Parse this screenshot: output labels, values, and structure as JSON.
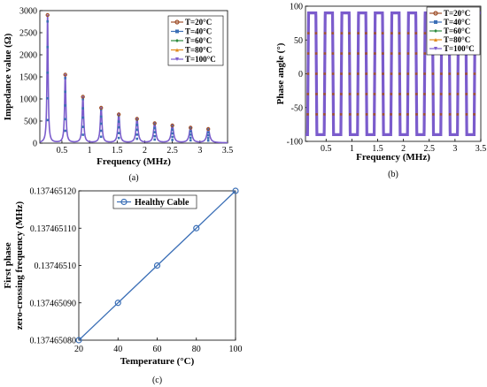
{
  "chart_data": [
    {
      "type": "line",
      "panel": "(a)",
      "xlabel": "Frequency (MHz)",
      "ylabel": "Impedance value (Ω)",
      "xlim": [
        0.1,
        3.5
      ],
      "ylim": [
        0,
        3000
      ],
      "xticks": [
        "0.5",
        "1",
        "1.5",
        "2",
        "2.5",
        "3",
        "3.5"
      ],
      "yticks": [
        "0",
        "500",
        "1000",
        "1500",
        "2000",
        "2500",
        "3000"
      ],
      "grid": false,
      "legend_position": "top-right",
      "series": [
        {
          "name": "T=20°C",
          "color": "#a0522d",
          "marker": "circle"
        },
        {
          "name": "T=40°C",
          "color": "#3b6fb6",
          "marker": "square"
        },
        {
          "name": "T=60°C",
          "color": "#2e8b3e",
          "marker": "diamond"
        },
        {
          "name": "T=80°C",
          "color": "#e08a1e",
          "marker": "triangle-up"
        },
        {
          "name": "T=100°C",
          "color": "#7b5ccc",
          "marker": "triangle-down"
        }
      ],
      "resonance_peaks": {
        "x": [
          0.24,
          0.56,
          0.88,
          1.21,
          1.53,
          1.86,
          2.18,
          2.5,
          2.83,
          3.15
        ],
        "y": [
          2900,
          1550,
          1050,
          800,
          650,
          550,
          450,
          400,
          350,
          320
        ]
      }
    },
    {
      "type": "line",
      "panel": "(b)",
      "xlabel": "Frequency (MHz)",
      "ylabel": "Phase angle (°)",
      "xlim": [
        0.1,
        3.5
      ],
      "ylim": [
        -100,
        100
      ],
      "xticks": [
        "0.5",
        "1",
        "1.5",
        "2",
        "2.5",
        "3",
        "3.5"
      ],
      "yticks": [
        "-100",
        "-50",
        "0",
        "50",
        "100"
      ],
      "grid": false,
      "legend_position": "top-right",
      "series": [
        {
          "name": "T=20°C",
          "color": "#a0522d",
          "marker": "circle"
        },
        {
          "name": "T=40°C",
          "color": "#3b6fb6",
          "marker": "square"
        },
        {
          "name": "T=60°C",
          "color": "#2e8b3e",
          "marker": "diamond"
        },
        {
          "name": "T=80°C",
          "color": "#e08a1e",
          "marker": "triangle-up"
        },
        {
          "name": "T=100°C",
          "color": "#7b5ccc",
          "marker": "triangle-down"
        }
      ],
      "phase_limits": [
        -90,
        90
      ],
      "first_crossing_MHz": 0.14
    },
    {
      "type": "line",
      "panel": "(c)",
      "xlabel": "Temperature (°C)",
      "ylabel_line1": "First phase",
      "ylabel_line2": "zero-crossing frequency (MHz)",
      "xlim": [
        20,
        100
      ],
      "ylim": [
        0.13746508,
        0.13746512
      ],
      "xticks": [
        "20",
        "40",
        "60",
        "80",
        "100"
      ],
      "yticks": [
        "0.137465080",
        "0.137465090",
        "0.13746510",
        "0.137465110",
        "0.137465120"
      ],
      "grid": false,
      "legend_position": "top-left",
      "series": [
        {
          "name": "Healthy Cable",
          "color": "#3b6fb6",
          "marker": "circle",
          "x": [
            20,
            40,
            60,
            80,
            100
          ],
          "y": [
            0.13746508,
            0.13746509,
            0.1374651,
            0.13746511,
            0.13746512
          ]
        }
      ]
    }
  ]
}
